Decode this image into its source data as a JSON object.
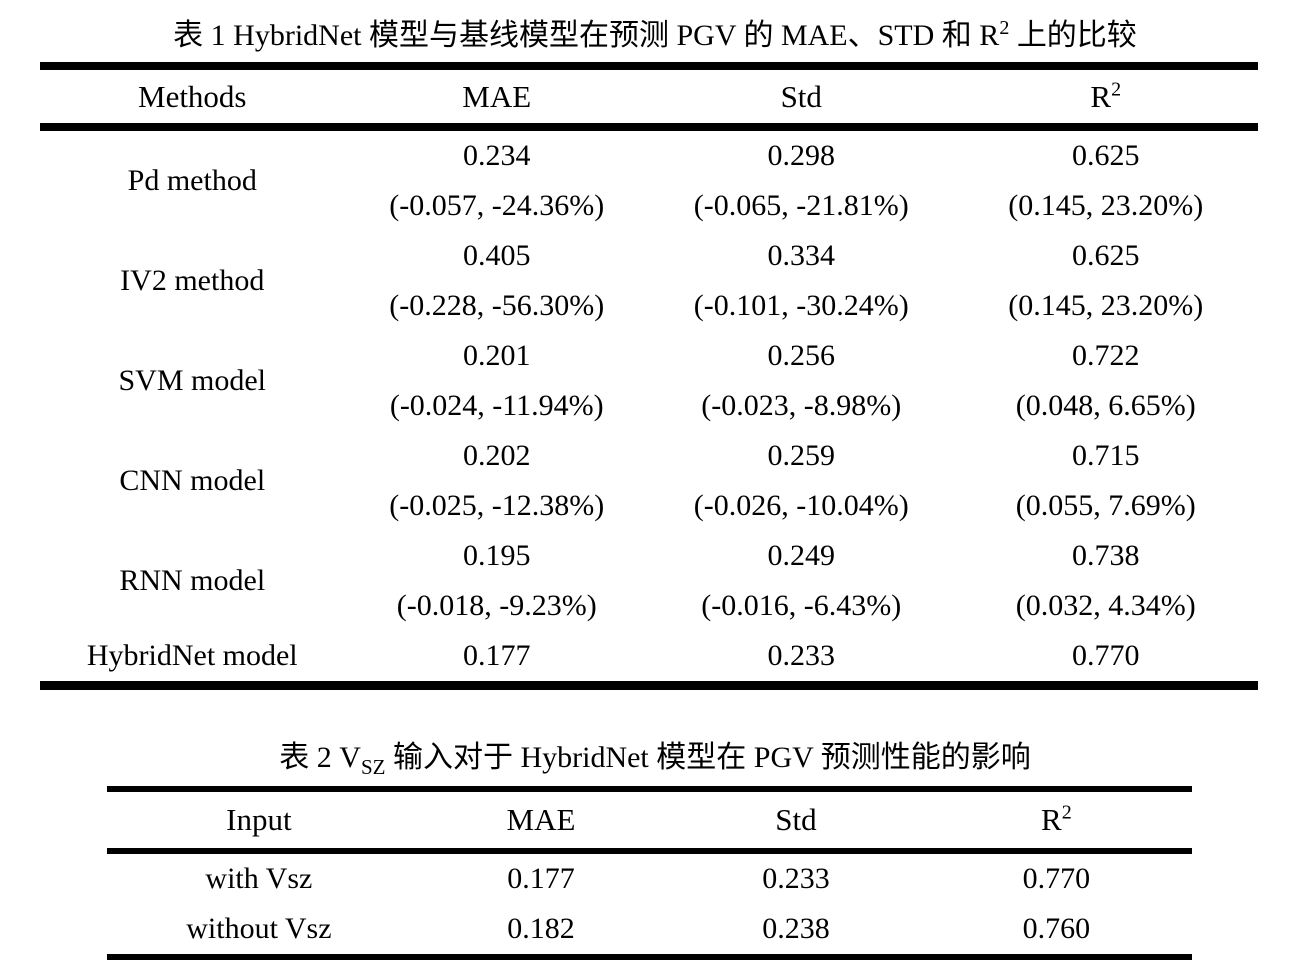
{
  "table1": {
    "title": {
      "pre": "表 1 HybridNet 模型与基线模型在预测 PGV 的 MAE、STD 和 R",
      "sup": "2",
      "post": " 上的比较"
    },
    "headers": {
      "methods": "Methods",
      "mae": "MAE",
      "std": "Std",
      "r2_base": "R",
      "r2_sup": "2"
    },
    "rows": [
      {
        "method": "Pd method",
        "mae": "0.234",
        "mae_delta": "(-0.057, -24.36%)",
        "std": "0.298",
        "std_delta": "(-0.065, -21.81%)",
        "r2": "0.625",
        "r2_delta": "(0.145, 23.20%)"
      },
      {
        "method": "IV2 method",
        "mae": "0.405",
        "mae_delta": "(-0.228, -56.30%)",
        "std": "0.334",
        "std_delta": "(-0.101, -30.24%)",
        "r2": "0.625",
        "r2_delta": "(0.145, 23.20%)"
      },
      {
        "method": "SVM model",
        "mae": "0.201",
        "mae_delta": "(-0.024, -11.94%)",
        "std": "0.256",
        "std_delta": "(-0.023, -8.98%)",
        "r2": "0.722",
        "r2_delta": "(0.048, 6.65%)"
      },
      {
        "method": "CNN model",
        "mae": "0.202",
        "mae_delta": "(-0.025, -12.38%)",
        "std": "0.259",
        "std_delta": "(-0.026, -10.04%)",
        "r2": "0.715",
        "r2_delta": "(0.055, 7.69%)"
      },
      {
        "method": "RNN model",
        "mae": "0.195",
        "mae_delta": "(-0.018, -9.23%)",
        "std": "0.249",
        "std_delta": "(-0.016, -6.43%)",
        "r2": "0.738",
        "r2_delta": "(0.032, 4.34%)"
      },
      {
        "method": "HybridNet model",
        "mae": "0.177",
        "std": "0.233",
        "r2": "0.770"
      }
    ]
  },
  "table2": {
    "title": {
      "pre": "表 2 V",
      "sub": "SZ",
      "post": " 输入对于 HybridNet 模型在 PGV 预测性能的影响"
    },
    "headers": {
      "input": "Input",
      "mae": "MAE",
      "std": "Std",
      "r2_base": "R",
      "r2_sup": "2"
    },
    "rows": [
      {
        "input": "with Vsz",
        "mae": "0.177",
        "std": "0.233",
        "r2": "0.770"
      },
      {
        "input": "without Vsz",
        "mae": "0.182",
        "std": "0.238",
        "r2": "0.760"
      }
    ]
  }
}
